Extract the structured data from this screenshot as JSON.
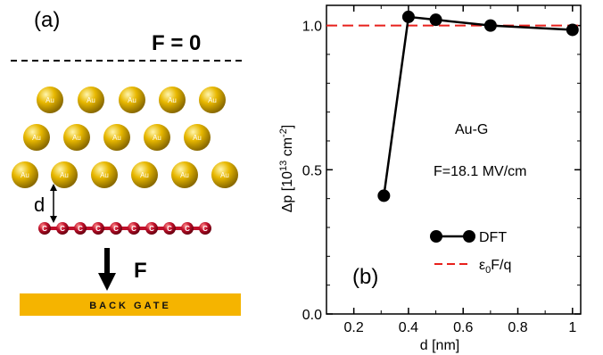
{
  "panel_a": {
    "label": "(a)",
    "field_zero_label": "F = 0",
    "field_label": "F",
    "distance_label": "d",
    "gate_label": "BACK GATE",
    "atom_au": "Au",
    "atom_c": "C",
    "colors": {
      "gold": "#d6a400",
      "gold_highlight": "#fff2a0",
      "carbon": "#c0102a",
      "gate": "#f5b400"
    }
  },
  "panel_b": {
    "label": "(b)",
    "annotation_material": "Au-G",
    "annotation_field": "F=18.1 MV/cm",
    "ylabel_prefix": "Δp [10",
    "ylabel_exp1": "13",
    "ylabel_mid": " cm",
    "ylabel_exp2": "-2",
    "ylabel_suffix": "]",
    "xlabel": "d [nm]",
    "legend_dft": "DFT",
    "legend_ref_eps": "ε",
    "legend_ref_sub": "0",
    "legend_ref_rest": "F/q",
    "colors": {
      "dft": "#000000",
      "reference": "#e8201c"
    }
  },
  "chart_data": {
    "type": "line",
    "x": [
      0.31,
      0.4,
      0.5,
      0.7,
      1.0
    ],
    "series": [
      {
        "name": "DFT",
        "values": [
          0.41,
          1.03,
          1.02,
          1.0,
          0.985
        ]
      },
      {
        "name": "ε0F/q",
        "values": [
          1.0,
          1.0,
          1.0,
          1.0,
          1.0
        ]
      }
    ],
    "xlabel": "d [nm]",
    "ylabel": "Δp [10^13 cm^-2]",
    "xlim": [
      0.1,
      1.03
    ],
    "ylim": [
      0.0,
      1.07
    ],
    "xticks": [
      "0.2",
      "0.4",
      "0.6",
      "0.8",
      "1"
    ],
    "xtick_values": [
      0.2,
      0.4,
      0.6,
      0.8,
      1.0
    ],
    "yticks": [
      "0.0",
      "0.5",
      "1.0"
    ],
    "ytick_values": [
      0.0,
      0.5,
      1.0
    ],
    "grid": false,
    "legend_placement": "bottom-right"
  }
}
